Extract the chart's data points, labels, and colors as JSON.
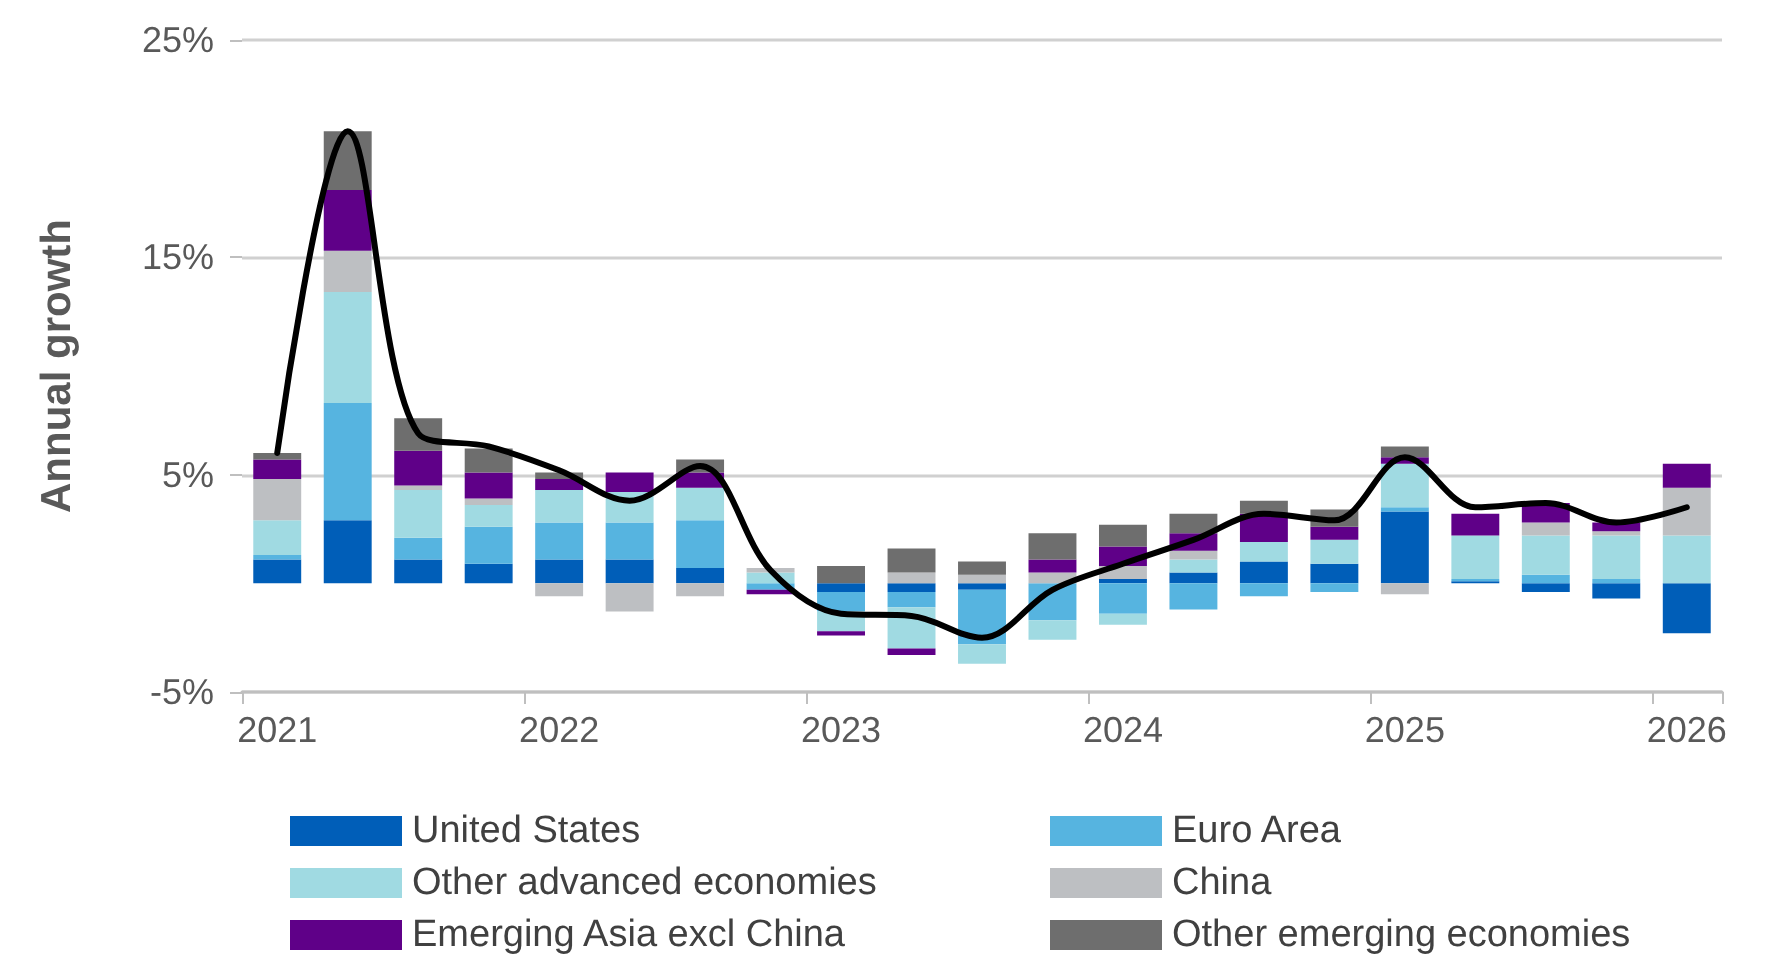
{
  "chart_data": {
    "type": "bar",
    "stacked": true,
    "ylabel": "Annual growth",
    "categories": [
      "2021",
      null,
      null,
      null,
      "2022",
      null,
      null,
      null,
      "2023",
      null,
      null,
      null,
      "2024",
      null,
      null,
      null,
      "2025",
      null,
      null,
      null,
      "2026"
    ],
    "ylim": [
      -5,
      25
    ],
    "yticks": [
      {
        "value": -5,
        "label": "-5%"
      },
      {
        "value": 5,
        "label": "5%"
      },
      {
        "value": 15,
        "label": "15%"
      },
      {
        "value": 25,
        "label": "25%"
      }
    ],
    "grid": "y",
    "legend": "bottom",
    "series": [
      {
        "name": "United States",
        "color": "#005eb8",
        "values": [
          1.1,
          2.9,
          1.1,
          0.9,
          1.1,
          1.1,
          0.7,
          0,
          -0.4,
          -0.4,
          -0.3,
          0,
          0.2,
          0.5,
          1.0,
          0.9,
          3.3,
          0.1,
          -0.4,
          -0.7,
          -2.3
        ]
      },
      {
        "name": "Euro Area",
        "color": "#56b4e0",
        "values": [
          0.2,
          5.4,
          1.0,
          1.7,
          1.7,
          1.7,
          2.2,
          -0.3,
          -0.9,
          -0.7,
          -2.5,
          -1.7,
          -1.4,
          -1.2,
          -0.6,
          -0.4,
          0.2,
          0.1,
          0.4,
          0.2,
          0
        ]
      },
      {
        "name": "Other advanced economies",
        "color": "#a0dae2",
        "values": [
          1.6,
          5.1,
          2.2,
          1.0,
          1.5,
          1.4,
          1.5,
          0.5,
          -0.9,
          -1.9,
          -0.9,
          -0.9,
          -0.5,
          0.6,
          0.9,
          1.1,
          2.0,
          2.0,
          1.8,
          2.0,
          2.2
        ]
      },
      {
        "name": "China",
        "color": "#bdbfc2",
        "values": [
          1.9,
          1.9,
          0.2,
          0.3,
          -0.6,
          -1.3,
          -0.6,
          0.2,
          0,
          0.5,
          0.4,
          0.5,
          0.6,
          0.4,
          0,
          0,
          -0.5,
          0,
          0.6,
          0.2,
          2.2
        ]
      },
      {
        "name": "Emerging Asia excl China",
        "color": "#5f0088",
        "values": [
          0.9,
          2.8,
          1.6,
          1.2,
          0.5,
          0.9,
          0.7,
          -0.2,
          -0.2,
          -0.3,
          0,
          0.6,
          0.9,
          0.8,
          1.3,
          0.6,
          0.3,
          1.0,
          0.9,
          0.4,
          1.1
        ]
      },
      {
        "name": "Other emerging economies",
        "color": "#6e6e6e",
        "values": [
          0.3,
          2.7,
          1.5,
          1.1,
          0.3,
          0,
          0.6,
          0,
          0.8,
          1.1,
          0.6,
          1.2,
          1.0,
          0.9,
          0.6,
          0.8,
          0.5,
          0,
          0,
          0,
          0
        ]
      },
      {
        "type": "line",
        "color": "#000000",
        "marker": "none",
        "line_style": "solid",
        "values": [
          6.0,
          20.8,
          6.9,
          6.3,
          5.2,
          3.8,
          5.4,
          0.6,
          -1.4,
          -1.5,
          -2.5,
          -0.3,
          0.9,
          2.0,
          3.2,
          2.9,
          5.8,
          3.5,
          3.7,
          2.8,
          3.5
        ]
      }
    ]
  }
}
